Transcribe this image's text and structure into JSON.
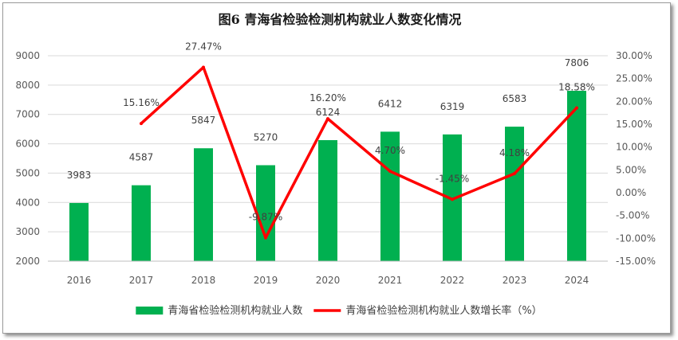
{
  "chart_data": {
    "type": "bar+line",
    "title": "图6  青海省检验检测机构就业人数变化情况",
    "categories": [
      "2016",
      "2017",
      "2018",
      "2019",
      "2020",
      "2021",
      "2022",
      "2023",
      "2024"
    ],
    "series": [
      {
        "name": "青海省检验检测机构就业人数",
        "type": "bar",
        "axis": "left",
        "color": "#00b050",
        "values": [
          3983,
          4587,
          5847,
          5270,
          6124,
          6412,
          6319,
          6583,
          7806
        ],
        "labels": [
          "3983",
          "4587",
          "5847",
          "5270",
          "6124",
          "6412",
          "6319",
          "6583",
          "7806"
        ]
      },
      {
        "name": "青海省检验检测机构就业人数增长率（%）",
        "type": "line",
        "axis": "right",
        "color": "#ff0000",
        "values": [
          null,
          15.16,
          27.47,
          -9.87,
          16.2,
          4.7,
          -1.45,
          4.18,
          18.58
        ],
        "labels": [
          "",
          "15.16%",
          "27.47%",
          "-9.87%",
          "16.20%",
          "4.70%",
          "-1.45%",
          "4.18%",
          "18.58%"
        ]
      }
    ],
    "y_left": {
      "min": 2000,
      "max": 9000,
      "step": 1000,
      "ticks": [
        "2000",
        "3000",
        "4000",
        "5000",
        "6000",
        "7000",
        "8000",
        "9000"
      ]
    },
    "y_right": {
      "min": -15,
      "max": 30,
      "step": 5,
      "ticks": [
        "-15.00%",
        "-10.00%",
        "-5.00%",
        "0.00%",
        "5.00%",
        "10.00%",
        "15.00%",
        "20.00%",
        "25.00%",
        "30.00%"
      ]
    },
    "grid": true,
    "legend_position": "bottom"
  }
}
